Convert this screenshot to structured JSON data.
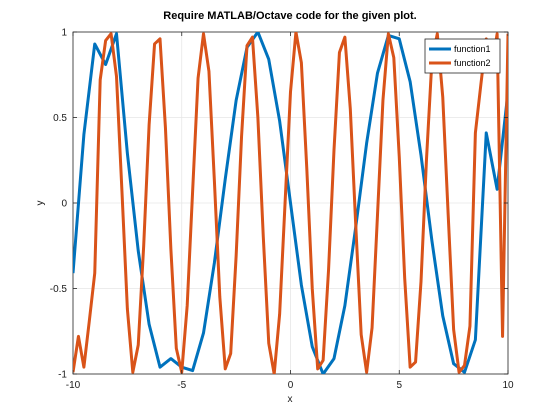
{
  "chart_data": {
    "type": "line",
    "title": "Require MATLAB/Octave code for the given plot.",
    "xlabel": "x",
    "ylabel": "y",
    "xlim": [
      -10,
      10
    ],
    "ylim": [
      -1,
      1
    ],
    "xticks": [
      -10,
      -5,
      0,
      5,
      10
    ],
    "xtick_labels": [
      "-10",
      "-5",
      "0",
      "5",
      "10"
    ],
    "yticks": [
      -1,
      -0.5,
      0,
      0.5,
      1
    ],
    "ytick_labels": [
      "-1",
      "-0.5",
      "0",
      "0.5",
      "1"
    ],
    "grid": true,
    "legend_position": "top-right",
    "series": [
      {
        "name": "function1",
        "color": "#0072BD",
        "x": [
          -10,
          -9.5,
          -9,
          -8.5,
          -8,
          -7.5,
          -7,
          -6.5,
          -6,
          -5.5,
          -5,
          -4.5,
          -4,
          -3.5,
          -3,
          -2.5,
          -2,
          -1.5,
          -1,
          -0.5,
          0,
          0.5,
          1,
          1.5,
          2,
          2.5,
          3,
          3.5,
          4,
          4.5,
          5,
          5.5,
          6,
          6.5,
          7,
          7.5,
          8,
          8.5,
          9,
          9.5,
          10
        ],
        "y": [
          -0.41,
          0.4,
          0.93,
          0.81,
          0.99,
          0.29,
          -0.28,
          -0.71,
          -0.96,
          -0.91,
          -0.96,
          -0.98,
          -0.76,
          -0.35,
          0.14,
          0.6,
          0.91,
          1.0,
          0.84,
          0.48,
          0.0,
          -0.48,
          -0.84,
          -1.0,
          -0.91,
          -0.6,
          -0.14,
          0.35,
          0.76,
          0.98,
          0.96,
          0.71,
          0.28,
          -0.22,
          -0.66,
          -0.94,
          -0.99,
          -0.8,
          0.41,
          0.08,
          0.65
        ]
      },
      {
        "name": "function2",
        "color": "#D95319",
        "x": [
          -10,
          -9.75,
          -9.5,
          -9.25,
          -9,
          -8.75,
          -8.5,
          -8.25,
          -8,
          -7.75,
          -7.5,
          -7.25,
          -7,
          -6.75,
          -6.5,
          -6.25,
          -6,
          -5.75,
          -5.5,
          -5.25,
          -5,
          -4.75,
          -4.5,
          -4.25,
          -4,
          -3.75,
          -3.5,
          -3.25,
          -3,
          -2.75,
          -2.5,
          -2.25,
          -2,
          -1.75,
          -1.5,
          -1.25,
          -1,
          -0.75,
          -0.5,
          -0.25,
          0,
          0.25,
          0.5,
          0.75,
          1,
          1.25,
          1.5,
          1.75,
          2,
          2.25,
          2.5,
          2.75,
          3,
          3.25,
          3.5,
          3.75,
          4,
          4.25,
          4.5,
          4.75,
          5,
          5.25,
          5.5,
          5.75,
          6,
          6.25,
          6.5,
          6.75,
          7,
          7.25,
          7.5,
          7.75,
          8,
          8.25,
          8.5,
          8.75,
          9,
          9.25,
          9.5,
          9.75,
          10
        ],
        "y": [
          -0.99,
          -0.78,
          -0.96,
          -0.69,
          -0.41,
          0.72,
          0.95,
          0.99,
          0.74,
          0.07,
          -0.62,
          -0.99,
          -0.83,
          -0.25,
          0.46,
          0.93,
          0.96,
          0.44,
          -0.27,
          -0.85,
          -0.99,
          -0.6,
          0.07,
          0.73,
          0.99,
          0.77,
          0.13,
          -0.55,
          -0.97,
          -0.88,
          -0.31,
          0.39,
          0.92,
          0.97,
          0.5,
          -0.2,
          -0.82,
          -1.0,
          -0.65,
          0.0,
          0.65,
          1.0,
          0.82,
          0.2,
          -0.5,
          -0.97,
          -0.92,
          -0.39,
          0.31,
          0.88,
          0.97,
          0.55,
          -0.13,
          -0.77,
          -0.99,
          -0.73,
          -0.07,
          0.6,
          0.99,
          0.85,
          0.27,
          -0.44,
          -0.96,
          -0.93,
          -0.46,
          0.25,
          0.83,
          0.99,
          0.62,
          -0.07,
          -0.74,
          -0.99,
          -0.95,
          -0.72,
          0.41,
          0.69,
          0.96,
          0.78,
          0.99,
          -0.78,
          0.99
        ]
      }
    ]
  }
}
